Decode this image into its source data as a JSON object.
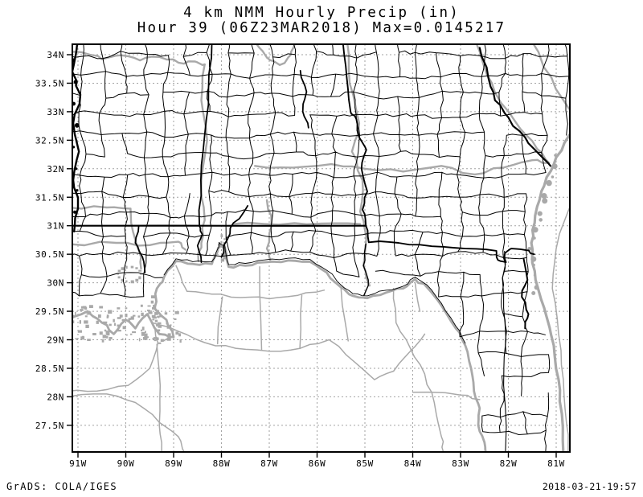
{
  "title": {
    "line1": "4 km NMM Hourly Precip (in)",
    "line2": "Hour 39 (06Z23MAR2018) Max=0.0145217"
  },
  "axes": {
    "lat_labels": [
      "34N",
      "33.5N",
      "33N",
      "32.5N",
      "32N",
      "31.5N",
      "31N",
      "30.5N",
      "30N",
      "29.5N",
      "29N",
      "28.5N",
      "28N",
      "27.5N"
    ],
    "lon_labels": [
      "91W",
      "90W",
      "89W",
      "88W",
      "87W",
      "86W",
      "85W",
      "84W",
      "83W",
      "82W",
      "81W"
    ]
  },
  "footer": {
    "left": "GrADS: COLA/IGES",
    "right": "2018-03-21-19:57"
  },
  "colors": {
    "background": "#ffffff",
    "ink": "#000000",
    "gray": "#a9a9a9",
    "grid": "#a2a2a2"
  }
}
